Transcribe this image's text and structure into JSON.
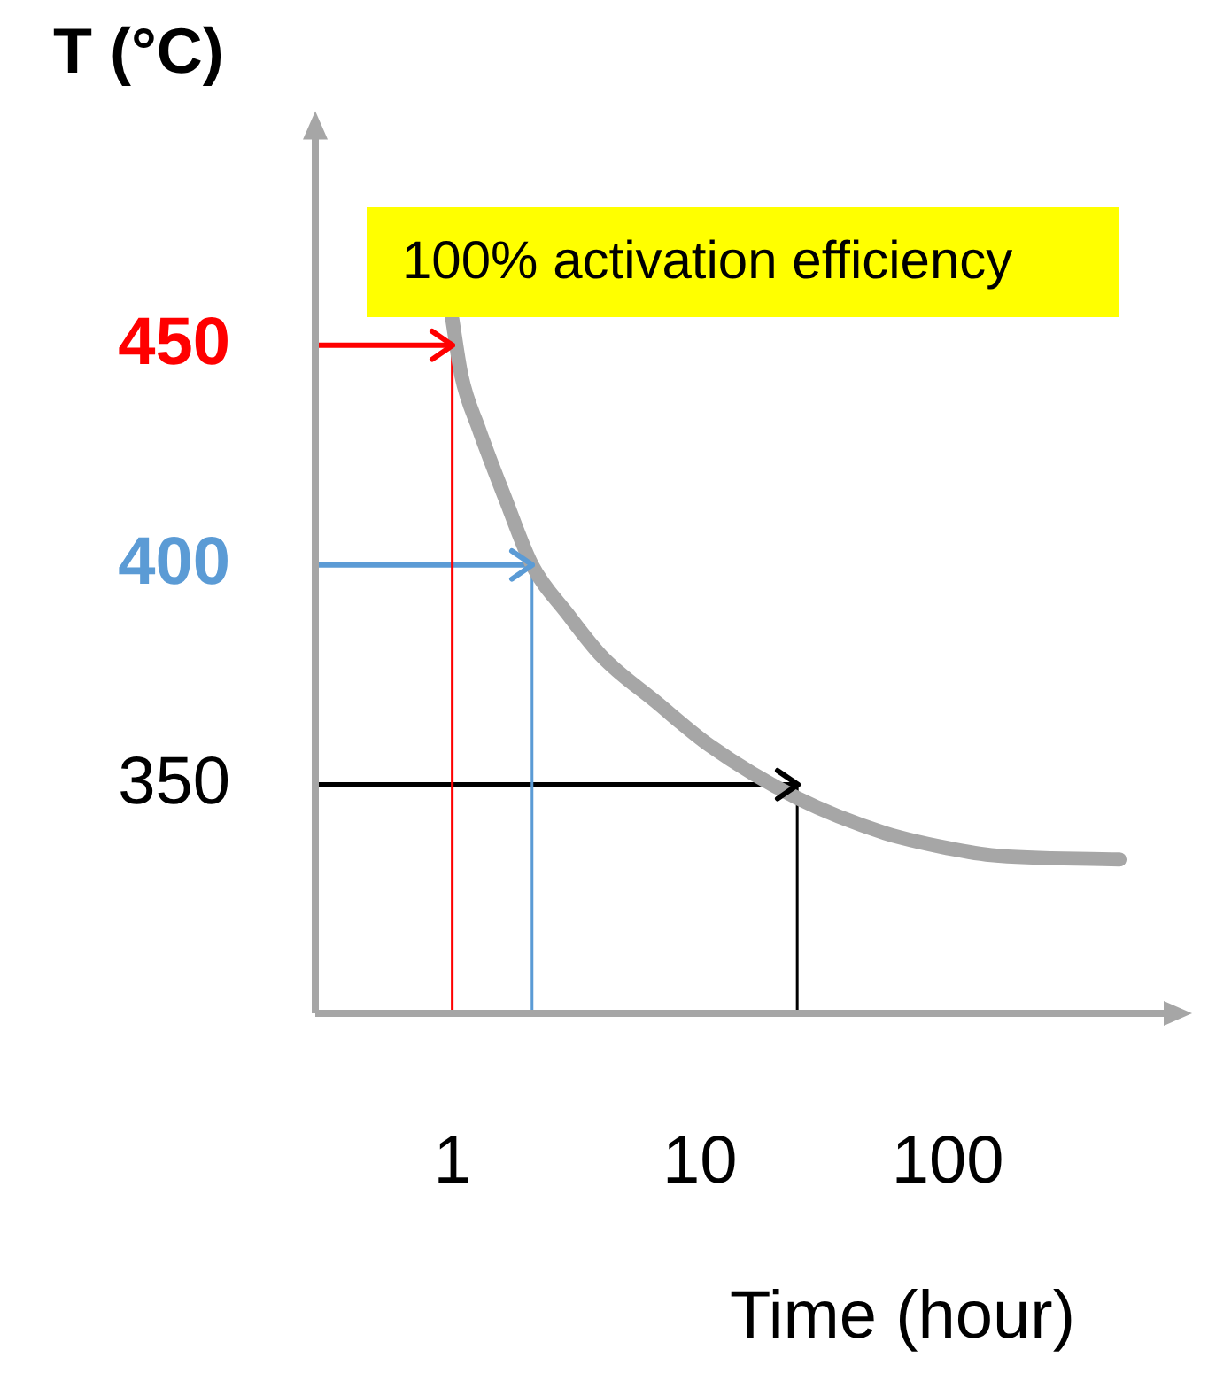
{
  "chart_data": {
    "type": "line",
    "ylabel": "T (°C)",
    "xlabel": "Time (hour)",
    "log": "x",
    "xlim": [
      0.28,
      850
    ],
    "xticks": [
      1,
      10,
      100
    ],
    "ylim": [
      298,
      500
    ],
    "yticks": [
      350,
      400,
      450
    ],
    "grid": false,
    "legend": false,
    "marker": "none",
    "annotations": [
      "100% activation efficiency"
    ],
    "series": [
      {
        "color": "#a6a6a6",
        "x": [
          1,
          1.09,
          1.28,
          1.64,
          2.1,
          2.91,
          4.05,
          6.6,
          10.9,
          24.7,
          56,
          92,
          150,
          494
        ],
        "values": [
          456,
          443,
          431,
          415,
          400,
          389,
          379,
          369,
          359,
          347,
          339,
          336,
          334,
          333
        ]
      },
      {
        "color": "#ff0000",
        "x": [
          0.28,
          1,
          1
        ],
        "values": [
          450,
          450,
          298
        ]
      },
      {
        "color": "#5b9bd5",
        "x": [
          0.28,
          2.1,
          2.1
        ],
        "values": [
          400,
          400,
          298
        ]
      },
      {
        "color": "#000000",
        "x": [
          0.28,
          24.7,
          24.7
        ],
        "values": [
          350,
          350,
          298
        ]
      }
    ]
  }
}
